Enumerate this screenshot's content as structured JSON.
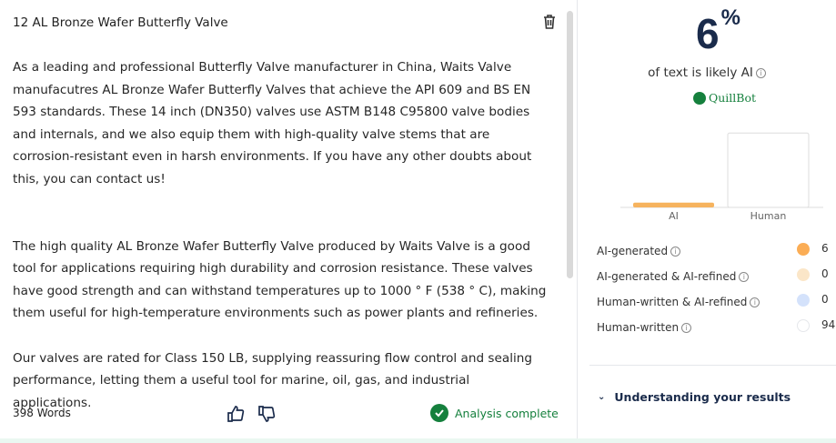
{
  "document": {
    "title": "12 AL Bronze Wafer Butterfly Valve",
    "paragraphs": [
      "As a leading and professional Butterfly Valve manufacturer in China, Waits Valve manufacutres AL Bronze Wafer Butterfly Valves that achieve the API 609 and BS EN 593 standards. These 14 inch (DN350) valves use ASTM B148 C95800 valve bodies and internals, and we also equip them with high-quality valve stems that are corrosion-resistant even in harsh environments. If you have any other doubts about this, you can contact us!",
      "The high quality AL Bronze Wafer Butterfly Valve produced by Waits Valve is a good tool for applications requiring  high durability and corrosion resistance. These valves have good strength and can withstand temperatures up to 1000 ° F (538 ° C), making them useful for high-temperature environments such as power plants and refineries.",
      "Our valves are rated for Class 150 LB, supplying reassuring flow control and sealing performance, letting  them a useful tool for marine, oil, gas, and industrial applications."
    ],
    "word_count": "398 Words",
    "status": "Analysis complete"
  },
  "result": {
    "percent": "6",
    "percent_sign": "%",
    "subtitle": "of text is likely AI",
    "brand": "QuillBot"
  },
  "chart_data": {
    "type": "bar",
    "categories": [
      "AI",
      "Human"
    ],
    "values": [
      6,
      94
    ],
    "ylim": [
      0,
      100
    ],
    "colors": [
      "#f6b35e",
      "#ffffff"
    ]
  },
  "breakdown": [
    {
      "label": "AI-generated",
      "value": "6",
      "color": "#fbad55"
    },
    {
      "label": "AI-generated & AI-refined",
      "value": "0",
      "color": "#fbe6c8"
    },
    {
      "label": "Human-written & AI-refined",
      "value": "0",
      "color": "#d4e2fb"
    },
    {
      "label": "Human-written",
      "value": "94",
      "color": "#ffffff"
    }
  ],
  "understanding": "Understanding your results"
}
